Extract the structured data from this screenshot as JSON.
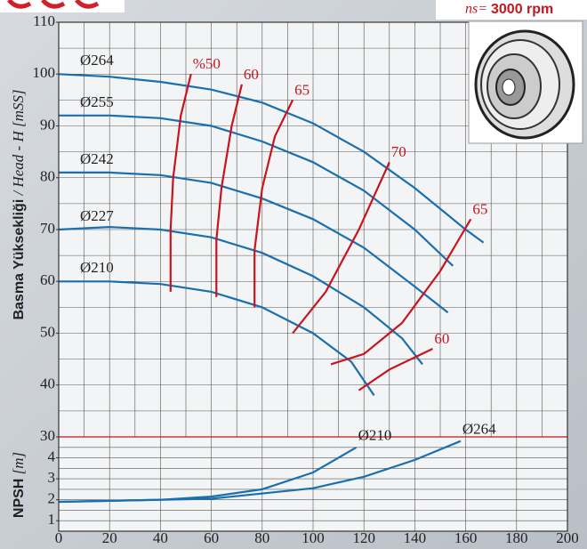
{
  "chart_data": [
    {
      "type": "line",
      "ylabel": "Basma Yüksekliği",
      "ylabel_italic": "/ Head - H [mSS]",
      "speed_label": "ns=",
      "speed": "3000 rpm",
      "xlim": [
        0,
        200
      ],
      "ylim": [
        30,
        110
      ],
      "yticks": [
        30,
        40,
        50,
        60,
        70,
        80,
        90,
        100,
        110
      ],
      "xgrid": [
        10,
        20,
        30,
        40,
        50,
        60,
        70,
        80,
        90,
        100,
        110,
        120,
        130,
        140,
        150,
        160,
        170,
        180,
        190
      ],
      "ygrid": [
        35,
        40,
        45,
        50,
        55,
        60,
        65,
        70,
        75,
        80,
        85,
        90,
        95,
        100,
        105
      ],
      "series": [
        {
          "name": "Ø264",
          "color": "#1a6fae",
          "x": [
            0,
            20,
            40,
            60,
            80,
            100,
            120,
            140,
            160,
            167
          ],
          "values": [
            100,
            99.5,
            98.5,
            97,
            94.5,
            90.5,
            85,
            78,
            70,
            67.5
          ]
        },
        {
          "name": "Ø255",
          "color": "#1a6fae",
          "x": [
            0,
            20,
            40,
            60,
            80,
            100,
            120,
            140,
            155
          ],
          "values": [
            92,
            92,
            91.5,
            90,
            87,
            83,
            77.5,
            70,
            63
          ]
        },
        {
          "name": "Ø242",
          "color": "#1a6fae",
          "x": [
            0,
            20,
            40,
            60,
            80,
            100,
            120,
            140,
            153
          ],
          "values": [
            81,
            81,
            80.5,
            79,
            76,
            72,
            66.5,
            59,
            54
          ]
        },
        {
          "name": "Ø227",
          "color": "#1a6fae",
          "x": [
            0,
            20,
            40,
            60,
            80,
            100,
            120,
            135,
            143
          ],
          "values": [
            70,
            70.5,
            70,
            68.5,
            65.5,
            61,
            55,
            49,
            44
          ]
        },
        {
          "name": "Ø210",
          "color": "#1a6fae",
          "x": [
            0,
            20,
            40,
            60,
            80,
            100,
            115,
            124
          ],
          "values": [
            60,
            60,
            59.5,
            58,
            55,
            50,
            44.5,
            38
          ]
        }
      ],
      "efficiency": [
        {
          "name": "%50",
          "color": "#c8141e",
          "x": [
            44,
            44,
            45,
            48,
            52
          ],
          "values": [
            58,
            70,
            80,
            92,
            100
          ]
        },
        {
          "name": "60",
          "color": "#c8141e",
          "x": [
            62,
            62,
            64,
            68,
            72
          ],
          "values": [
            57,
            68,
            78,
            90,
            98
          ]
        },
        {
          "name": "65",
          "color": "#c8141e",
          "x": [
            77,
            77,
            80,
            85,
            92
          ],
          "values": [
            55,
            66,
            78,
            88,
            95
          ]
        },
        {
          "name": "70",
          "color": "#c8141e",
          "x": [
            92,
            105,
            118,
            130
          ],
          "values": [
            50,
            58,
            70,
            83
          ]
        },
        {
          "name": "65",
          "color": "#c8141e",
          "x": [
            107,
            120,
            135,
            150,
            162
          ],
          "values": [
            44,
            46,
            52,
            62,
            72
          ]
        },
        {
          "name": "60",
          "color": "#c8141e",
          "x": [
            118,
            130,
            147
          ],
          "values": [
            39,
            43,
            47
          ]
        }
      ]
    },
    {
      "type": "line",
      "ylabel": "NPSH",
      "ylabel_italic": "[m]",
      "xlim": [
        0,
        200
      ],
      "ylim": [
        0.5,
        5
      ],
      "xticks": [
        0,
        20,
        40,
        60,
        80,
        100,
        120,
        140,
        160,
        180,
        200
      ],
      "yticks": [
        1,
        2,
        3,
        4
      ],
      "ygrid": [
        1,
        1.5,
        2,
        2.5,
        3,
        3.5,
        4,
        4.5
      ],
      "series": [
        {
          "name": "Ø210",
          "color": "#1a6fae",
          "x": [
            0,
            40,
            60,
            80,
            100,
            117
          ],
          "values": [
            1.9,
            2.0,
            2.15,
            2.5,
            3.3,
            4.5
          ]
        },
        {
          "name": "Ø264",
          "color": "#1a6fae",
          "x": [
            0,
            60,
            100,
            120,
            140,
            158
          ],
          "values": [
            1.9,
            2.05,
            2.55,
            3.1,
            3.9,
            4.8
          ]
        }
      ]
    }
  ]
}
